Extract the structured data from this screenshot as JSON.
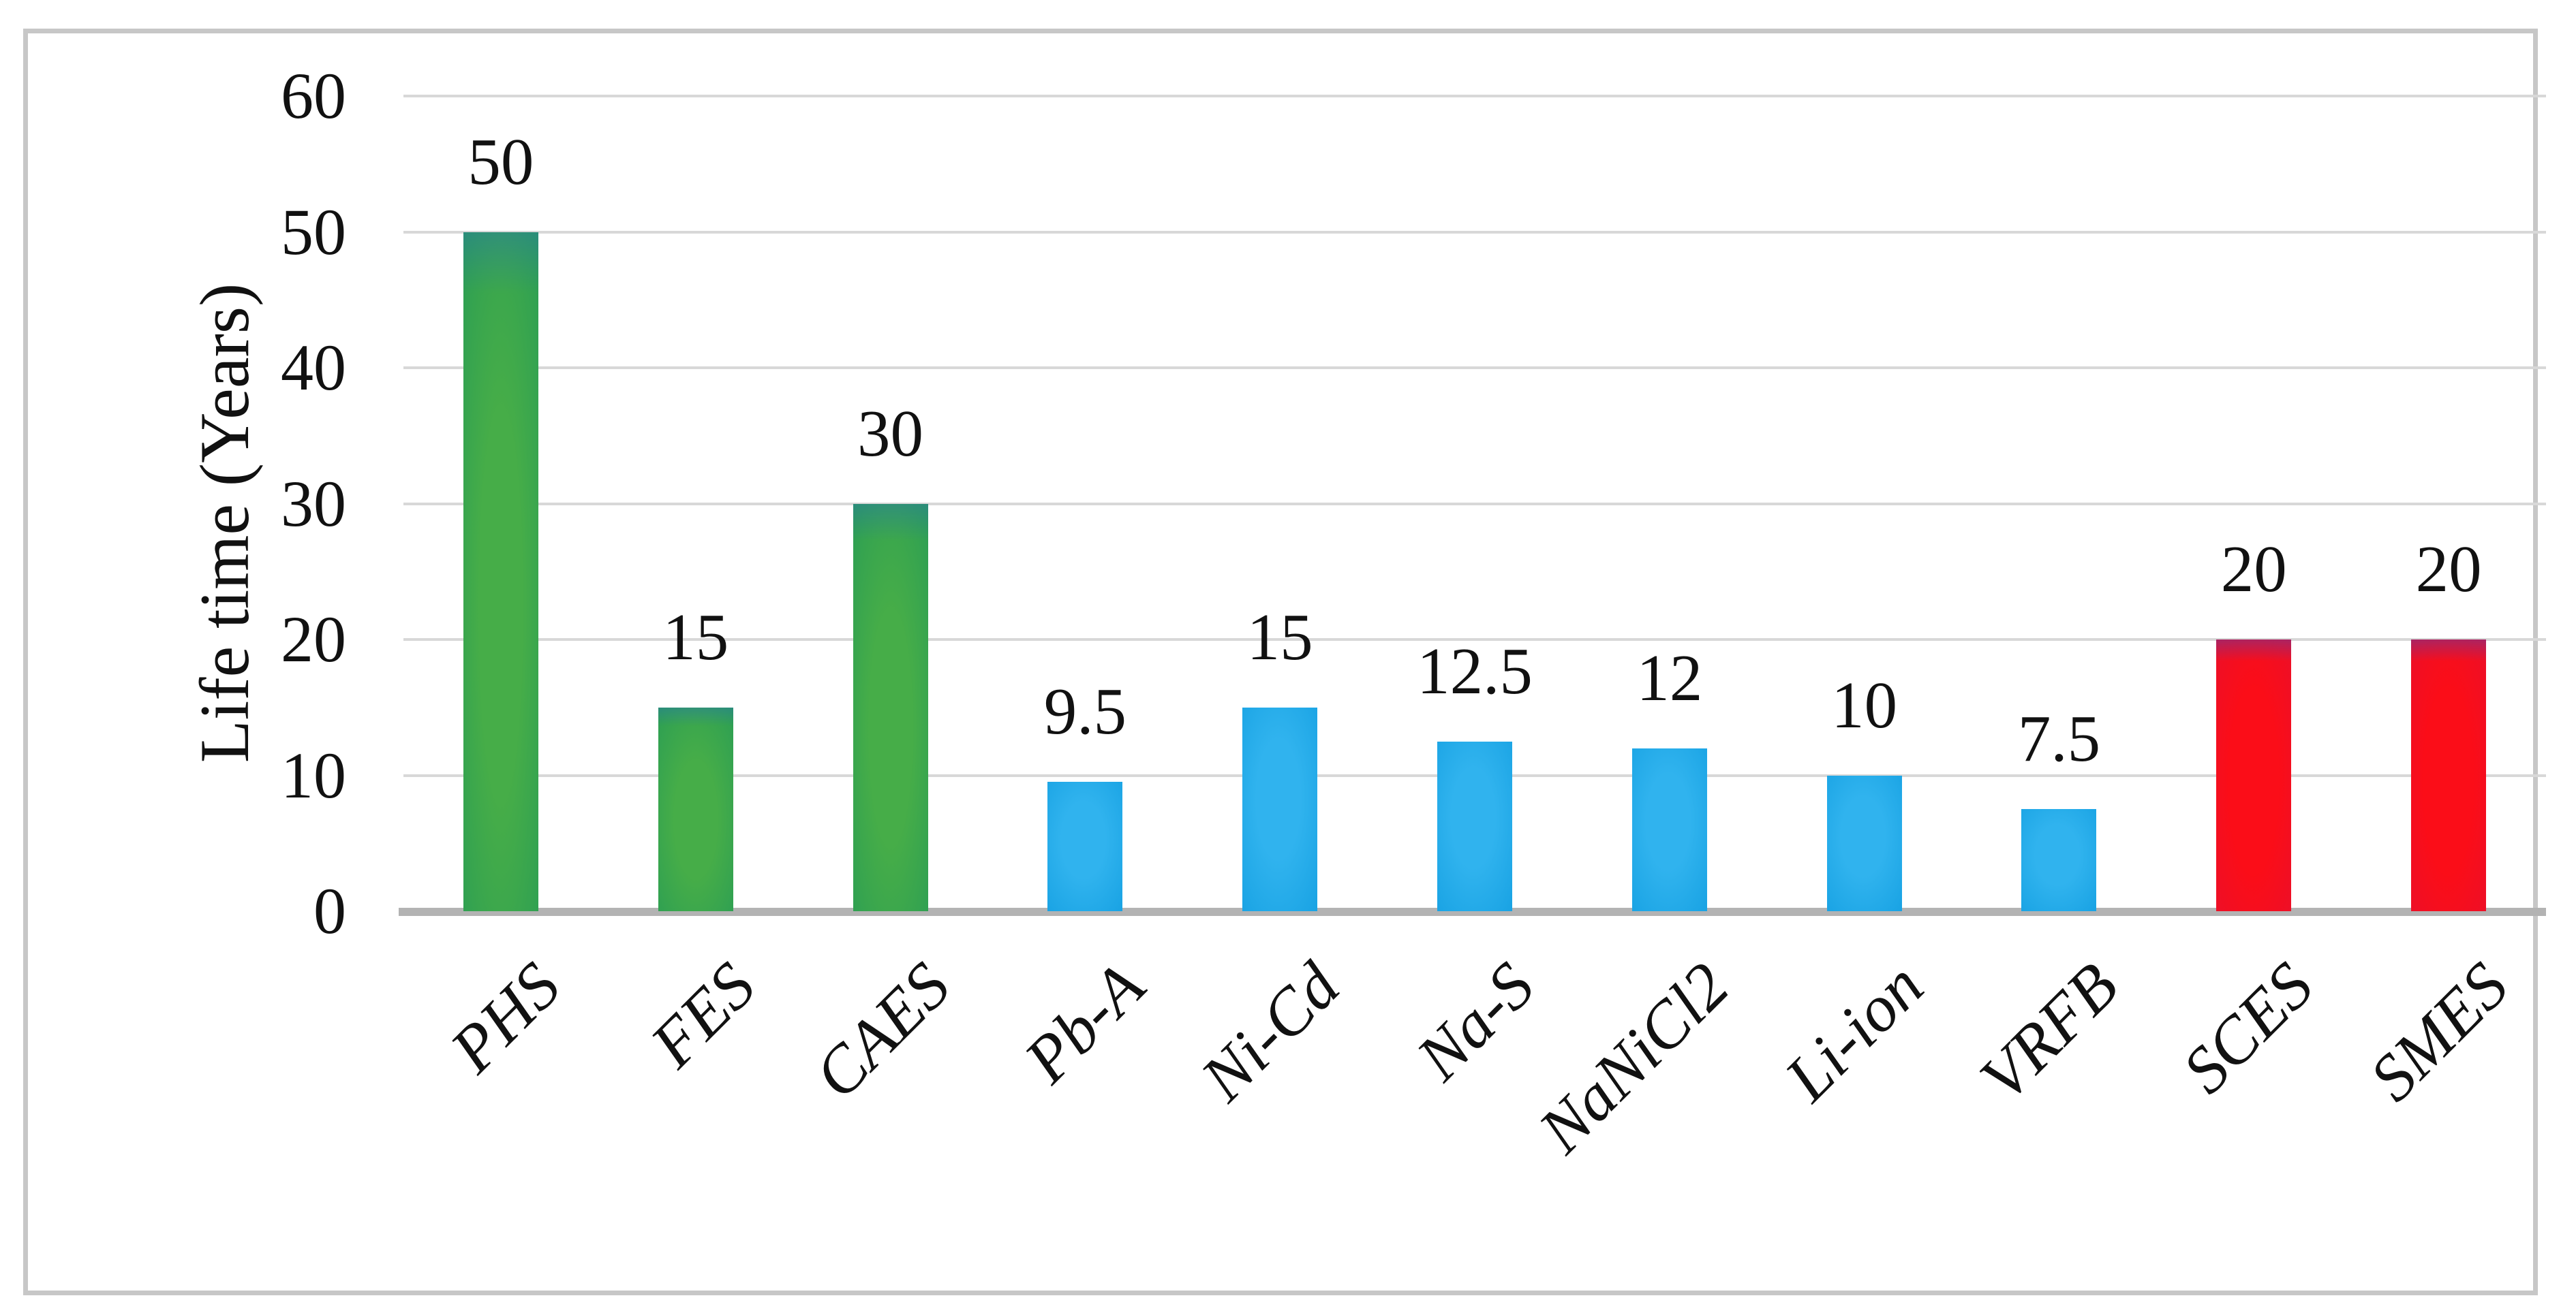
{
  "figure": {
    "kind": "embedded-chart-image",
    "border_color": "#c7c7c7",
    "background": "#ffffff"
  },
  "chart_data": {
    "type": "bar",
    "title": "",
    "xlabel": "",
    "ylabel": "Life time (Years)",
    "categories": [
      "PHS",
      "FES",
      "CAES",
      "Pb-A",
      "Ni-Cd",
      "Na-S",
      "NaNiCl2",
      "Li-ion",
      "VRFB",
      "SCES",
      "SMES"
    ],
    "values": [
      50,
      15,
      30,
      9.5,
      15,
      12.5,
      12,
      10,
      7.5,
      20,
      20
    ],
    "data_labels": [
      "50",
      "15",
      "30",
      "9.5",
      "15",
      "12.5",
      "12",
      "10",
      "7.5",
      "20",
      "20"
    ],
    "bar_color_groups": [
      "green",
      "green",
      "green",
      "blue",
      "blue",
      "blue",
      "blue",
      "blue",
      "blue",
      "red",
      "red"
    ],
    "group_colors": {
      "green": "#2f9e54",
      "blue": "#18a2e3",
      "red": "#ee0f26"
    },
    "ylim": [
      0,
      60
    ],
    "yticks": [
      0,
      10,
      20,
      30,
      40,
      50,
      60
    ],
    "grid": true,
    "gridline_color": "#d8d8d8",
    "baseline_color": "#b3b3b3",
    "legend": "none",
    "x_tick_rotation_deg": 45,
    "data_label_position": "outside-end"
  }
}
